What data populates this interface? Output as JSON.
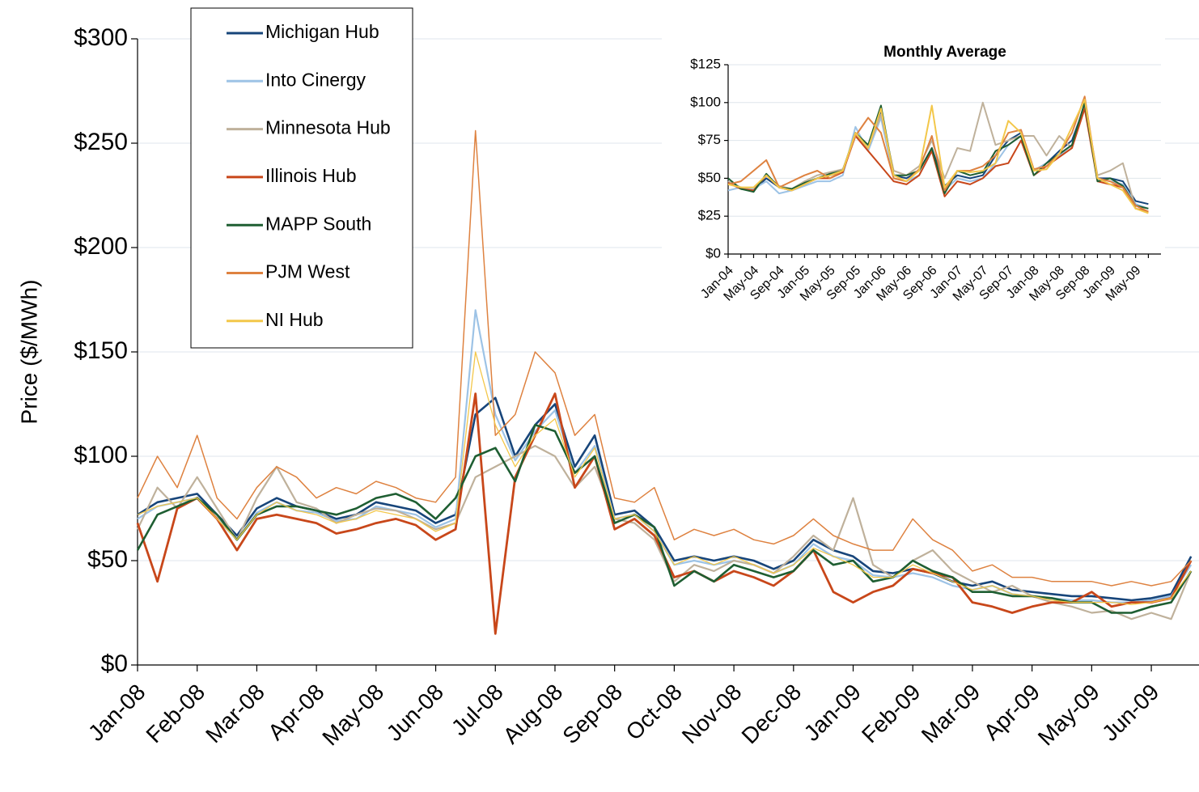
{
  "chart_data": [
    {
      "type": "line",
      "y_label": "Price ($/MWh)",
      "categories": [
        "Jan-08",
        null,
        null,
        "Feb-08",
        null,
        null,
        "Mar-08",
        null,
        null,
        "Apr-08",
        null,
        null,
        "May-08",
        null,
        null,
        "Jun-08",
        null,
        null,
        "Jul-08",
        null,
        null,
        "Aug-08",
        null,
        null,
        "Sep-08",
        null,
        null,
        "Oct-08",
        null,
        null,
        "Nov-08",
        null,
        null,
        "Dec-08",
        null,
        null,
        "Jan-09",
        null,
        null,
        "Feb-09",
        null,
        null,
        "Mar-09",
        null,
        null,
        "Apr-09",
        null,
        null,
        "May-09",
        null,
        null,
        "Jun-09",
        null,
        null
      ],
      "ylim": [
        0,
        300
      ],
      "yticks": [
        {
          "value": 0,
          "label": "$0"
        },
        {
          "value": 50,
          "label": "$50"
        },
        {
          "value": 100,
          "label": "$100"
        },
        {
          "value": 150,
          "label": "$150"
        },
        {
          "value": 200,
          "label": "$200"
        },
        {
          "value": 250,
          "label": "$250"
        },
        {
          "value": 300,
          "label": "$300"
        }
      ],
      "grid": true,
      "series": [
        {
          "name": "Michigan Hub",
          "color": "#17457a",
          "values": [
            72,
            78,
            80,
            82,
            72,
            62,
            75,
            80,
            76,
            74,
            70,
            72,
            78,
            76,
            74,
            68,
            72,
            120,
            128,
            100,
            115,
            125,
            95,
            110,
            72,
            74,
            66,
            50,
            52,
            50,
            52,
            50,
            46,
            50,
            60,
            55,
            52,
            45,
            44,
            46,
            44,
            40,
            38,
            40,
            36,
            35,
            34,
            33,
            33,
            32,
            31,
            32,
            34,
            52
          ]
        },
        {
          "name": "Into Cinergy",
          "color": "#9dc3e6",
          "values": [
            70,
            76,
            78,
            80,
            70,
            60,
            73,
            78,
            74,
            73,
            69,
            70,
            76,
            74,
            72,
            66,
            70,
            170,
            120,
            98,
            112,
            122,
            92,
            105,
            70,
            72,
            64,
            48,
            50,
            48,
            50,
            48,
            44,
            48,
            58,
            52,
            50,
            43,
            42,
            44,
            42,
            38,
            36,
            38,
            34,
            33,
            32,
            31,
            31,
            30,
            30,
            31,
            33,
            48
          ]
        },
        {
          "name": "Minnesota Hub",
          "color": "#bfb19b",
          "values": [
            65,
            85,
            75,
            90,
            75,
            60,
            80,
            95,
            78,
            75,
            68,
            72,
            75,
            74,
            70,
            65,
            68,
            90,
            95,
            100,
            105,
            100,
            85,
            95,
            70,
            68,
            60,
            40,
            48,
            45,
            50,
            48,
            44,
            52,
            62,
            55,
            80,
            48,
            42,
            50,
            55,
            45,
            40,
            35,
            38,
            33,
            30,
            28,
            25,
            26,
            22,
            25,
            22,
            45
          ]
        },
        {
          "name": "Illinois Hub",
          "color": "#c8471a",
          "values": [
            68,
            40,
            75,
            80,
            70,
            55,
            70,
            72,
            70,
            68,
            63,
            65,
            68,
            70,
            67,
            60,
            65,
            130,
            15,
            90,
            110,
            130,
            85,
            100,
            65,
            70,
            62,
            42,
            45,
            40,
            45,
            42,
            38,
            45,
            55,
            35,
            30,
            35,
            38,
            46,
            44,
            42,
            30,
            28,
            25,
            28,
            30,
            30,
            35,
            28,
            30,
            30,
            32,
            50
          ]
        },
        {
          "name": "MAPP South",
          "color": "#1e5e32",
          "values": [
            55,
            72,
            76,
            80,
            72,
            60,
            72,
            76,
            76,
            74,
            72,
            75,
            80,
            82,
            78,
            70,
            80,
            100,
            104,
            88,
            115,
            112,
            92,
            100,
            68,
            72,
            66,
            38,
            45,
            40,
            48,
            45,
            42,
            45,
            55,
            48,
            50,
            40,
            42,
            50,
            45,
            42,
            35,
            35,
            33,
            33,
            32,
            30,
            30,
            25,
            25,
            28,
            30,
            45
          ]
        },
        {
          "name": "PJM West",
          "color": "#de8240",
          "values": [
            80,
            100,
            85,
            110,
            80,
            70,
            85,
            95,
            90,
            80,
            85,
            82,
            88,
            85,
            80,
            78,
            90,
            256,
            110,
            120,
            150,
            140,
            110,
            120,
            80,
            78,
            85,
            60,
            65,
            62,
            65,
            60,
            58,
            62,
            70,
            62,
            58,
            55,
            55,
            70,
            60,
            55,
            45,
            48,
            42,
            42,
            40,
            40,
            40,
            38,
            40,
            38,
            40,
            50
          ]
        },
        {
          "name": "NI Hub",
          "color": "#f3c74a",
          "values": [
            72,
            76,
            78,
            80,
            70,
            60,
            72,
            78,
            74,
            72,
            68,
            70,
            74,
            72,
            70,
            64,
            68,
            150,
            115,
            95,
            110,
            118,
            90,
            104,
            70,
            72,
            64,
            48,
            52,
            48,
            52,
            48,
            44,
            48,
            56,
            52,
            48,
            42,
            42,
            48,
            44,
            40,
            36,
            38,
            34,
            33,
            31,
            30,
            30,
            30,
            29,
            30,
            32,
            45
          ]
        }
      ]
    },
    {
      "type": "line",
      "title": "Monthly Average",
      "categories": [
        "Jan-04",
        null,
        "May-04",
        null,
        "Sep-04",
        null,
        "Jan-05",
        null,
        "May-05",
        null,
        "Sep-05",
        null,
        "Jan-06",
        null,
        "May-06",
        null,
        "Sep-06",
        null,
        "Jan-07",
        null,
        "May-07",
        null,
        "Sep-07",
        null,
        "Jan-08",
        null,
        "May-08",
        null,
        "Sep-08",
        null,
        "Jan-09",
        null,
        "May-09",
        null
      ],
      "ylim": [
        0,
        125
      ],
      "yticks": [
        {
          "value": 0,
          "label": "$0"
        },
        {
          "value": 25,
          "label": "$25"
        },
        {
          "value": 50,
          "label": "$50"
        },
        {
          "value": 75,
          "label": "$75"
        },
        {
          "value": 100,
          "label": "$100"
        },
        {
          "value": 125,
          "label": "$125"
        }
      ],
      "grid": true,
      "series": [
        {
          "color": "#17457a",
          "values": [
            48,
            43,
            42,
            50,
            44,
            42,
            46,
            50,
            52,
            55,
            80,
            70,
            95,
            52,
            50,
            55,
            70,
            45,
            52,
            50,
            52,
            65,
            75,
            80,
            55,
            60,
            68,
            75,
            98,
            50,
            50,
            48,
            35,
            33
          ]
        },
        {
          "color": "#9dc3e6",
          "values": [
            42,
            44,
            43,
            48,
            40,
            42,
            45,
            48,
            48,
            52,
            84,
            68,
            90,
            50,
            48,
            52,
            68,
            42,
            50,
            48,
            50,
            60,
            72,
            78,
            55,
            60,
            65,
            72,
            96,
            50,
            48,
            46,
            33,
            30
          ]
        },
        {
          "color": "#bfb19b",
          "values": [
            48,
            44,
            42,
            52,
            45,
            43,
            48,
            52,
            54,
            56,
            78,
            70,
            92,
            55,
            52,
            58,
            75,
            50,
            70,
            68,
            100,
            72,
            75,
            78,
            78,
            65,
            78,
            70,
            100,
            52,
            55,
            60,
            30,
            28
          ]
        },
        {
          "color": "#c8471a",
          "values": [
            47,
            43,
            42,
            52,
            44,
            42,
            46,
            50,
            50,
            54,
            78,
            68,
            58,
            48,
            46,
            52,
            68,
            38,
            48,
            46,
            50,
            58,
            60,
            75,
            52,
            58,
            64,
            70,
            96,
            48,
            46,
            44,
            30,
            28
          ]
        },
        {
          "color": "#1e5e32",
          "values": [
            50,
            43,
            41,
            53,
            44,
            43,
            47,
            50,
            53,
            55,
            80,
            72,
            98,
            52,
            52,
            55,
            70,
            40,
            55,
            52,
            54,
            68,
            72,
            78,
            52,
            60,
            66,
            72,
            100,
            48,
            50,
            45,
            32,
            30
          ]
        },
        {
          "color": "#de8240",
          "values": [
            46,
            48,
            55,
            62,
            44,
            48,
            52,
            55,
            50,
            55,
            78,
            90,
            80,
            50,
            48,
            56,
            78,
            42,
            55,
            55,
            58,
            65,
            80,
            82,
            56,
            58,
            66,
            80,
            104,
            50,
            48,
            44,
            32,
            28
          ]
        },
        {
          "color": "#f3c74a",
          "values": [
            46,
            44,
            44,
            52,
            44,
            42,
            46,
            50,
            52,
            55,
            80,
            70,
            96,
            52,
            48,
            55,
            98,
            44,
            55,
            54,
            55,
            60,
            88,
            80,
            55,
            56,
            66,
            84,
            102,
            50,
            46,
            42,
            30,
            27
          ]
        }
      ]
    }
  ]
}
